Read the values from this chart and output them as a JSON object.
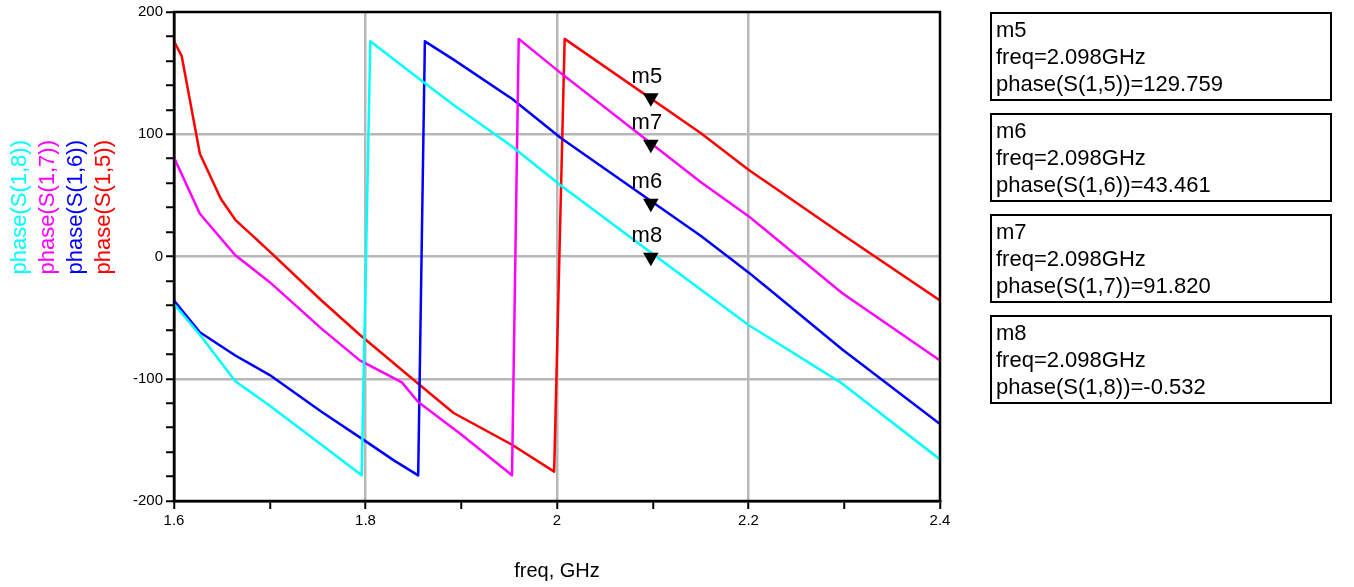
{
  "chart_data": {
    "type": "line",
    "xlabel": "freq, GHz",
    "legend": "left",
    "grid": true,
    "marker": "none",
    "line_style": "solid",
    "xlim": [
      1.6,
      2.4
    ],
    "xticks": [
      1.6,
      {
        "value": 1.7,
        "label": null
      },
      1.8,
      {
        "value": 1.9,
        "label": null
      },
      2.0,
      {
        "value": 2.1,
        "label": null
      },
      2.2,
      {
        "value": 2.3,
        "label": null
      },
      2.4
    ],
    "ylim": [
      -200,
      200
    ],
    "yticks": [
      -200,
      {
        "value": -180,
        "label": null
      },
      {
        "value": -160,
        "label": null
      },
      {
        "value": -140,
        "label": null
      },
      {
        "value": -120,
        "label": null
      },
      -100,
      {
        "value": -80,
        "label": null
      },
      {
        "value": -60,
        "label": null
      },
      {
        "value": -40,
        "label": null
      },
      {
        "value": -20,
        "label": null
      },
      0,
      {
        "value": 20,
        "label": null
      },
      {
        "value": 40,
        "label": null
      },
      {
        "value": 60,
        "label": null
      },
      {
        "value": 80,
        "label": null
      },
      100,
      {
        "value": 120,
        "label": null
      },
      {
        "value": 140,
        "label": null
      },
      {
        "value": 160,
        "label": null
      },
      {
        "value": 180,
        "label": null
      },
      200
    ],
    "series": [
      {
        "name": "phase(S(1,8))",
        "color": "#00ffff",
        "x": [
          1.6,
          1.627,
          1.664,
          1.7,
          1.754,
          1.796,
          1.805,
          1.845,
          1.892,
          1.953,
          2.004,
          2.15,
          2.2,
          2.298,
          2.4
        ],
        "values": [
          -39,
          -64,
          -102,
          -122,
          -154,
          -179,
          176,
          152,
          124,
          90,
          58,
          -27,
          -56,
          -104,
          -166
        ]
      },
      {
        "name": "phase(S(1,7))",
        "color": "#ff00ff",
        "x": [
          1.6,
          1.627,
          1.664,
          1.7,
          1.754,
          1.794,
          1.838,
          1.855,
          1.899,
          1.953,
          1.96,
          2.004,
          2.15,
          2.2,
          2.298,
          2.4
        ],
        "values": [
          81,
          35,
          1,
          -21,
          -59,
          -85,
          -103,
          -119,
          -145,
          -179,
          178,
          150,
          61,
          33,
          -30,
          -85
        ]
      },
      {
        "name": "phase(S(1,6))",
        "color": "#0000ff",
        "x": [
          1.6,
          1.627,
          1.664,
          1.7,
          1.754,
          1.798,
          1.83,
          1.855,
          1.862,
          1.892,
          1.953,
          2.004,
          2.15,
          2.2,
          2.298,
          2.4
        ],
        "values": [
          -36,
          -62,
          -81,
          -97,
          -127,
          -150,
          -167,
          -179,
          176,
          161,
          129,
          97,
          17,
          -13,
          -76,
          -137
        ]
      },
      {
        "name": "phase(S(1,5))",
        "color": "#ff0000",
        "x": [
          1.6,
          1.608,
          1.627,
          1.649,
          1.664,
          1.7,
          1.754,
          1.794,
          1.852,
          1.892,
          1.953,
          1.997,
          2.008,
          2.15,
          2.2,
          2.298,
          2.4
        ],
        "values": [
          176,
          164,
          84,
          47,
          30,
          4,
          -36,
          -64,
          -102,
          -128,
          -154,
          -176,
          178,
          101,
          71,
          18,
          -36
        ]
      },
      {
        "type": "scatter",
        "color": "#000000",
        "marker": "triangle",
        "x": [
          2.098,
          2.098,
          2.098,
          2.098
        ],
        "values": [
          129.759,
          91.82,
          43.461,
          -0.532
        ],
        "value_labels": [
          "m5",
          "m7",
          "m6",
          "m8"
        ]
      }
    ],
    "annotations": [
      "m5\nfreq=2.098GHz\nphase(S(1,5))=129.759",
      "m6\nfreq=2.098GHz\nphase(S(1,6))=43.461",
      "m7\nfreq=2.098GHz\nphase(S(1,7))=91.820",
      "m8\nfreq=2.098GHz\nphase(S(1,8))=-0.532"
    ]
  }
}
